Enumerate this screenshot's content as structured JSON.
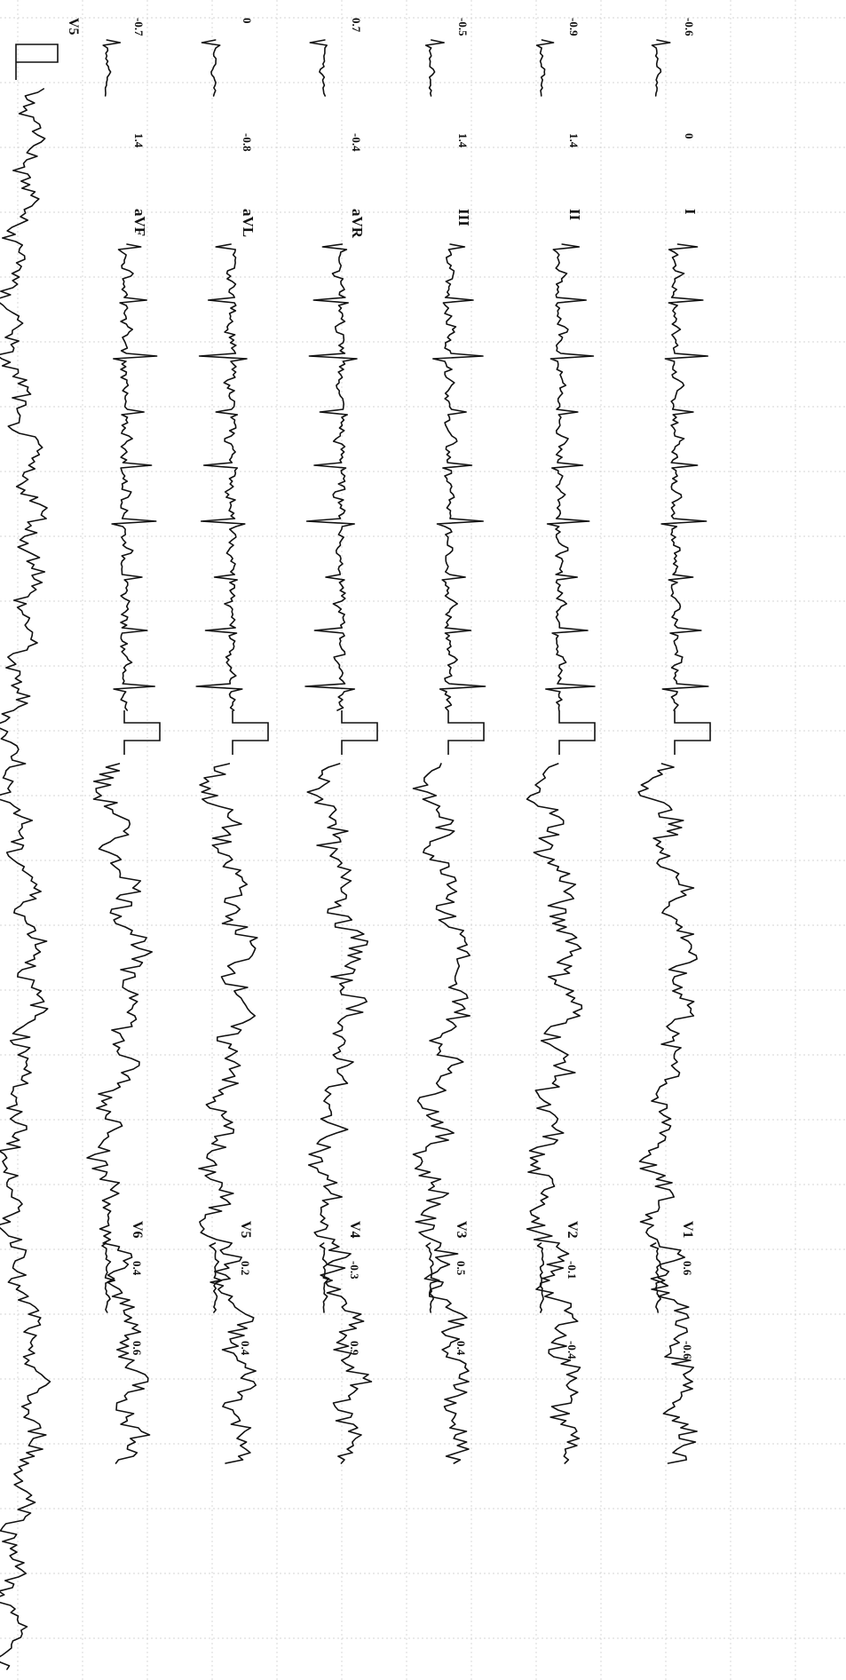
{
  "chart_data": {
    "type": "line",
    "grid": true,
    "orientation": "rotated 90 degrees clockwise",
    "leads": [
      {
        "name": "I",
        "label": "I",
        "vals": [
          "0",
          "-0.6"
        ],
        "morph": "upright"
      },
      {
        "name": "II",
        "label": "II",
        "vals": [
          "1.4",
          "-0.9"
        ],
        "morph": "tilted"
      },
      {
        "name": "III",
        "label": "III",
        "vals": [
          "1.4",
          "-0.5"
        ],
        "morph": "tilted"
      },
      {
        "name": "aVR",
        "label": "aVR",
        "vals": [
          "-0.4",
          "0.7"
        ],
        "morph": "inverted"
      },
      {
        "name": "aVL",
        "label": "aVL",
        "vals": [
          "-0.8",
          "0"
        ],
        "morph": "inverted"
      },
      {
        "name": "aVF",
        "label": "aVF",
        "vals": [
          "1.4",
          "-0.7"
        ],
        "morph": "tilted"
      },
      {
        "name": "V1",
        "label": "V1",
        "vals": [
          "0.6",
          "-0.6"
        ],
        "morph": "noisy"
      },
      {
        "name": "V2",
        "label": "V2",
        "vals": [
          "-0.1",
          "-0.4"
        ],
        "morph": "noisy"
      },
      {
        "name": "V3",
        "label": "V3",
        "vals": [
          "0.5",
          "0.4"
        ],
        "morph": "noisy"
      },
      {
        "name": "V4",
        "label": "V4",
        "vals": [
          "-0.3",
          "0.9"
        ],
        "morph": "noisy"
      },
      {
        "name": "V5",
        "label": "V5",
        "vals": [
          "0.2",
          "0.4"
        ],
        "morph": "noisy"
      },
      {
        "name": "V6",
        "label": "V6",
        "vals": [
          "0.4",
          "0.6"
        ],
        "morph": "noisy"
      }
    ],
    "rhythm_strip": {
      "name": "V5",
      "label": "V5"
    }
  }
}
